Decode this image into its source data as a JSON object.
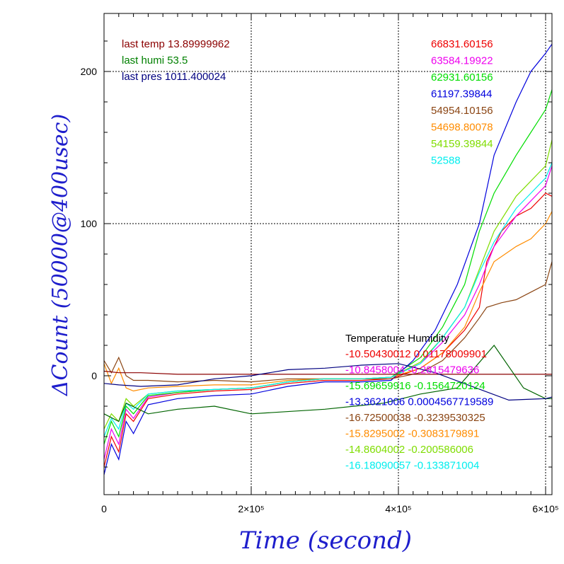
{
  "chart_data": {
    "type": "line",
    "xlabel": "Time (second)",
    "ylabel": "ΔCount (50000@400usec)",
    "xlim": [
      0,
      610000
    ],
    "ylim": [
      -78,
      245
    ],
    "x_ticks": [
      {
        "value": 0,
        "label": "0"
      },
      {
        "value": 200000,
        "label": "2×10⁵"
      },
      {
        "value": 400000,
        "label": "4×10⁵"
      },
      {
        "value": 600000,
        "label": "6×10⁵"
      }
    ],
    "y_ticks": [
      {
        "value": 0,
        "label": "0"
      },
      {
        "value": 100,
        "label": "100"
      },
      {
        "value": 200,
        "label": "200"
      }
    ],
    "grid": true,
    "status_lines": [
      {
        "text": "last temp 13.89999962",
        "color": "#8b0000"
      },
      {
        "text": "last humi 53.5",
        "color": "#008000"
      },
      {
        "text": "last pres 1011.400024",
        "color": "#000080"
      }
    ],
    "legend_header": "Temperature    Humidity",
    "series": [
      {
        "name": "66831.60156",
        "stats": "-10.50430012 0.01178009901",
        "color": "#ee0000",
        "x": [
          0,
          10000,
          20000,
          30000,
          40000,
          60000,
          100000,
          150000,
          200000,
          250000,
          300000,
          350000,
          390000,
          430000,
          460000,
          490000,
          510000,
          520000,
          540000,
          560000,
          580000,
          590000,
          600000,
          610000
        ],
        "y": [
          -60,
          -40,
          -50,
          -25,
          -30,
          -15,
          -12,
          -10,
          -9,
          -5,
          -3,
          -3,
          -2,
          5,
          15,
          30,
          45,
          75,
          95,
          105,
          110,
          115,
          120,
          118
        ]
      },
      {
        "name": "63584.19922",
        "stats": "-10.8458004 -0.2815479636",
        "color": "#ee00ee",
        "x": [
          0,
          10000,
          20000,
          30000,
          40000,
          60000,
          100000,
          150000,
          200000,
          250000,
          300000,
          350000,
          390000,
          430000,
          460000,
          490000,
          510000,
          530000,
          560000,
          580000,
          600000,
          610000
        ],
        "y": [
          -55,
          -35,
          -45,
          -22,
          -28,
          -14,
          -11,
          -9,
          -8,
          -4,
          -2,
          -2,
          -1,
          8,
          22,
          40,
          60,
          85,
          105,
          115,
          125,
          138
        ]
      },
      {
        "name": "62931.60156",
        "stats": "-15.69659916 -0.1564720124",
        "color": "#00dd00",
        "x": [
          0,
          10000,
          20000,
          30000,
          40000,
          60000,
          100000,
          150000,
          200000,
          250000,
          300000,
          350000,
          390000,
          430000,
          460000,
          490000,
          510000,
          530000,
          560000,
          580000,
          600000,
          610000
        ],
        "y": [
          -45,
          -30,
          -40,
          -20,
          -25,
          -13,
          -11,
          -9,
          -8,
          -4,
          -2,
          -2,
          -1,
          12,
          32,
          60,
          95,
          120,
          145,
          160,
          175,
          188
        ]
      },
      {
        "name": "61197.39844",
        "stats": "-13.3621006 0.0004567719589",
        "color": "#0000dd",
        "x": [
          0,
          10000,
          20000,
          30000,
          40000,
          60000,
          100000,
          150000,
          200000,
          250000,
          300000,
          350000,
          390000,
          420000,
          450000,
          480000,
          510000,
          530000,
          560000,
          580000,
          600000,
          610000
        ],
        "y": [
          -65,
          -45,
          -55,
          -30,
          -38,
          -19,
          -15,
          -13,
          -12,
          -7,
          -4,
          -4,
          -3,
          10,
          30,
          60,
          100,
          145,
          180,
          200,
          212,
          218
        ]
      },
      {
        "name": "54954.10156",
        "stats": "-16.72500038 -0.3239530325",
        "color": "#8b4513",
        "x": [
          0,
          10000,
          20000,
          30000,
          40000,
          60000,
          100000,
          150000,
          200000,
          250000,
          300000,
          350000,
          390000,
          430000,
          460000,
          490000,
          510000,
          520000,
          540000,
          560000,
          580000,
          600000,
          610000
        ],
        "y": [
          10,
          2,
          12,
          0,
          -3,
          -3,
          -4,
          -3,
          -4,
          -2,
          -2,
          -2,
          -2,
          2,
          10,
          25,
          38,
          45,
          48,
          50,
          55,
          60,
          75
        ]
      },
      {
        "name": "54698.80078",
        "stats": "-15.8295002 -0.3083179891",
        "color": "#ff8c00",
        "x": [
          0,
          10000,
          20000,
          30000,
          40000,
          60000,
          100000,
          150000,
          200000,
          250000,
          300000,
          350000,
          390000,
          430000,
          460000,
          490000,
          510000,
          530000,
          560000,
          580000,
          600000,
          610000
        ],
        "y": [
          8,
          -5,
          5,
          -8,
          -10,
          -8,
          -7,
          -6,
          -6,
          -3,
          -2,
          -2,
          -1,
          5,
          15,
          32,
          55,
          75,
          85,
          90,
          100,
          108
        ]
      },
      {
        "name": "54159.39844",
        "stats": "-14.8604002 -0.200586006",
        "color": "#7fdd00",
        "x": [
          0,
          10000,
          20000,
          30000,
          40000,
          60000,
          100000,
          150000,
          200000,
          250000,
          300000,
          350000,
          390000,
          430000,
          460000,
          490000,
          510000,
          530000,
          560000,
          580000,
          600000,
          610000
        ],
        "y": [
          -35,
          -25,
          -30,
          -15,
          -20,
          -12,
          -10,
          -9,
          -8,
          -4,
          -2,
          -2,
          -1,
          9,
          25,
          45,
          70,
          95,
          118,
          128,
          138,
          155
        ]
      },
      {
        "name": "52588",
        "stats": "-16.18090057 -0.133871004",
        "color": "#00eeee",
        "x": [
          0,
          10000,
          20000,
          30000,
          40000,
          60000,
          100000,
          150000,
          200000,
          250000,
          300000,
          350000,
          390000,
          430000,
          460000,
          490000,
          510000,
          530000,
          560000,
          580000,
          600000,
          610000
        ],
        "y": [
          -40,
          -28,
          -35,
          -18,
          -22,
          -12,
          -10,
          -9,
          -8,
          -4,
          -2,
          -2,
          -1,
          8,
          25,
          45,
          68,
          88,
          110,
          120,
          130,
          140
        ]
      },
      {
        "name": "",
        "color": "#8b0000",
        "x": [
          0,
          20000,
          50000,
          100000,
          200000,
          300000,
          400000,
          500000,
          610000
        ],
        "y": [
          3,
          2,
          2,
          1,
          1,
          1,
          1,
          1,
          1
        ]
      },
      {
        "name": "",
        "color": "#006400",
        "x": [
          0,
          20000,
          30000,
          60000,
          100000,
          150000,
          200000,
          300000,
          380000,
          430000,
          480000,
          530000,
          570000,
          600000,
          610000
        ],
        "y": [
          -25,
          -30,
          -18,
          -25,
          -22,
          -20,
          -25,
          -22,
          -18,
          -12,
          -8,
          20,
          -8,
          -15,
          -15
        ]
      },
      {
        "name": "",
        "color": "#000080",
        "x": [
          0,
          20000,
          50000,
          100000,
          150000,
          200000,
          250000,
          300000,
          350000,
          400000,
          450000,
          500000,
          550000,
          600000,
          610000
        ],
        "y": [
          -5,
          -6,
          -7,
          -6,
          -2,
          0,
          4,
          5,
          7,
          8,
          2,
          -7,
          -16,
          -15,
          -14
        ]
      }
    ]
  }
}
